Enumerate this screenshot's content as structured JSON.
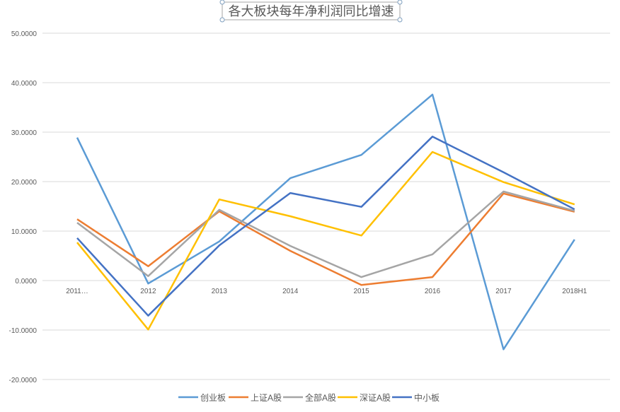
{
  "chart_data": {
    "type": "line",
    "title": "各大板块每年净利润同比增速",
    "xlabel": "",
    "ylabel": "",
    "categories": [
      "2011…",
      "2012",
      "2013",
      "2014",
      "2015",
      "2016",
      "2017",
      "2018H1"
    ],
    "ylim": [
      -20,
      50
    ],
    "yticks": [
      "50.0000",
      "40.0000",
      "30.0000",
      "20.0000",
      "10.0000",
      "0.0000",
      "-10.0000",
      "-20.0000"
    ],
    "ytick_values": [
      50,
      40,
      30,
      20,
      10,
      0,
      -10,
      -20
    ],
    "grid": true,
    "legend_position": "bottom",
    "series": [
      {
        "name": "创业板",
        "color": "#5B9BD5",
        "values": [
          28.9,
          -0.6,
          7.9,
          20.7,
          25.4,
          37.6,
          -13.9,
          8.3
        ]
      },
      {
        "name": "上证A股",
        "color": "#ED7D31",
        "values": [
          12.4,
          2.9,
          14.0,
          6.0,
          -0.9,
          0.7,
          17.6,
          13.9
        ]
      },
      {
        "name": "全部A股",
        "color": "#A5A5A5",
        "values": [
          11.7,
          0.9,
          14.3,
          7.0,
          0.7,
          5.3,
          18.0,
          14.1
        ]
      },
      {
        "name": "深证A股",
        "color": "#FFC000",
        "values": [
          7.7,
          -9.9,
          16.4,
          13.0,
          9.1,
          26.0,
          19.9,
          15.4
        ]
      },
      {
        "name": "中小板",
        "color": "#4472C4",
        "values": [
          8.6,
          -7.1,
          7.1,
          17.7,
          14.9,
          29.1,
          21.9,
          14.4
        ]
      }
    ]
  }
}
